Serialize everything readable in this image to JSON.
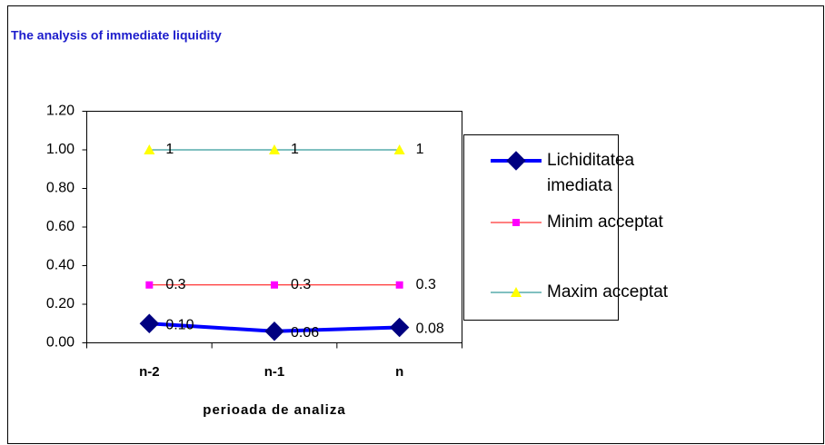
{
  "chart_data": {
    "type": "line",
    "title": "The analysis of immediate liquidity",
    "x_label": "perioada de analiza",
    "categories": [
      "n-2",
      "n-1",
      "n"
    ],
    "series": [
      {
        "name": "Lichiditatea imediata",
        "color": "#0000ff",
        "marker_color": "#000080",
        "marker": "diamond",
        "values": [
          0.1,
          0.06,
          0.08
        ],
        "value_labels": [
          "0.10",
          "0.06",
          "0.08"
        ]
      },
      {
        "name": "Minim acceptat",
        "color": "#ff0000",
        "marker_color": "#ff00ff",
        "marker": "square",
        "values": [
          0.3,
          0.3,
          0.3
        ]
      },
      {
        "name": "Maxim acceptat",
        "color": "#008080",
        "marker_color": "#ffff00",
        "marker": "triangle",
        "values": [
          1,
          1,
          1
        ]
      }
    ],
    "ylim": [
      0,
      1.2
    ],
    "yticks": [
      {
        "value": 0,
        "label": "0.00"
      },
      {
        "value": 0.2,
        "label": "0.20"
      },
      {
        "value": 0.4,
        "label": "0.40"
      },
      {
        "value": 0.6,
        "label": "0.60"
      },
      {
        "value": 0.8,
        "label": "0.80"
      },
      {
        "value": 1,
        "label": "1.00"
      },
      {
        "value": 1.2,
        "label": "1.20"
      }
    ],
    "grid": false,
    "legend": "right"
  }
}
